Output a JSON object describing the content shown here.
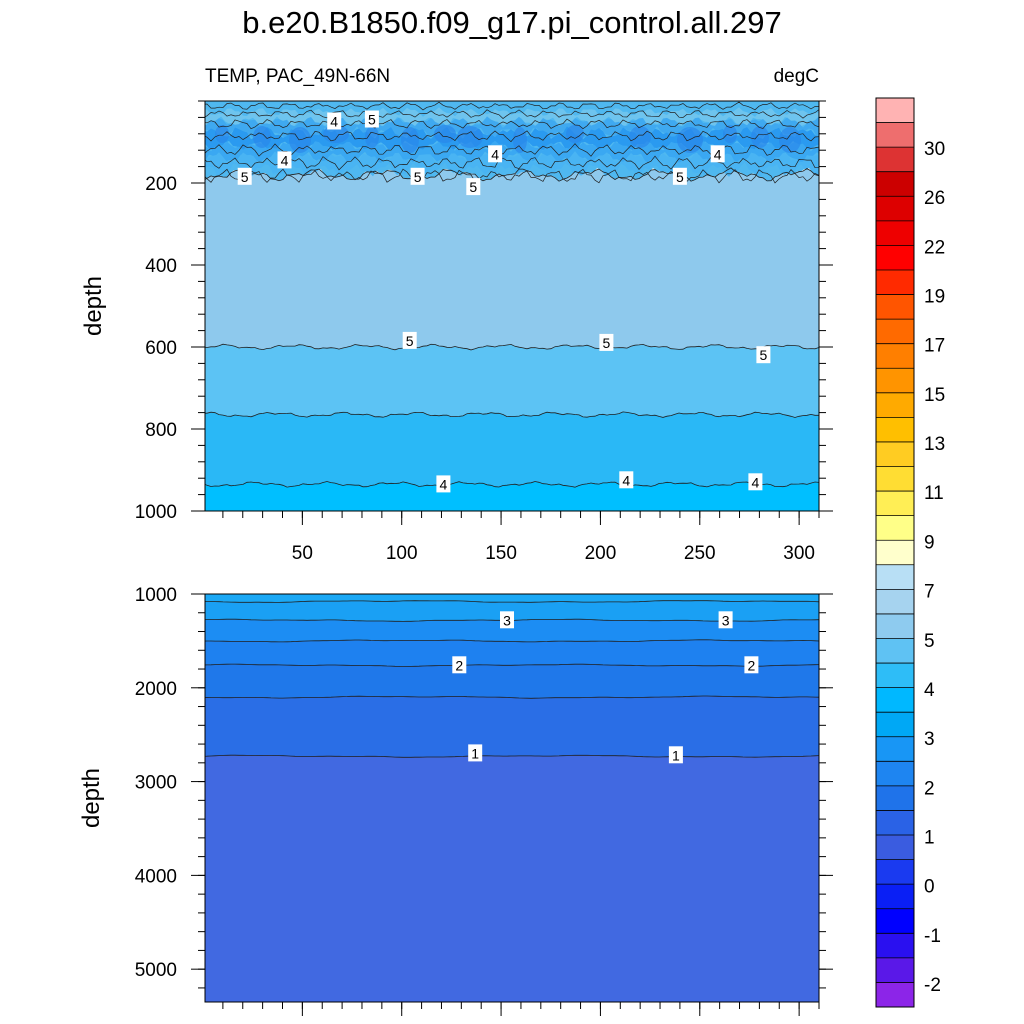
{
  "title": "b.e20.B1850.f09_g17.pi_control.all.297",
  "chart_data": [
    {
      "type": "contour",
      "panel": "upper",
      "variable_label": "TEMP, PAC_49N-66N",
      "units_label": "degC",
      "ylabel": "depth",
      "xlabel": "",
      "xlim": [
        1,
        310
      ],
      "ylim": [
        1000,
        0
      ],
      "x_ticks": [
        50,
        100,
        150,
        200,
        250,
        300
      ],
      "y_ticks": [
        200,
        400,
        600,
        800,
        1000
      ],
      "bands": [
        {
          "from_depth": 0,
          "to_depth": 180,
          "value_range": "3-5",
          "color": "#4fb8f0"
        },
        {
          "from_depth": 180,
          "to_depth": 600,
          "value_range": "5-6",
          "color": "#8ec9ed"
        },
        {
          "from_depth": 600,
          "to_depth": 765,
          "value_range": "4.5-5",
          "color": "#5cc3f4"
        },
        {
          "from_depth": 765,
          "to_depth": 935,
          "value_range": "4-4.5",
          "color": "#2ab8f6"
        },
        {
          "from_depth": 935,
          "to_depth": 1000,
          "value_range": "3.5-4",
          "color": "#00bfff"
        }
      ],
      "contour_labels": [
        {
          "text": "4",
          "x": 66,
          "depth": 50
        },
        {
          "text": "5",
          "x": 85,
          "depth": 45
        },
        {
          "text": "4",
          "x": 41,
          "depth": 145
        },
        {
          "text": "5",
          "x": 21,
          "depth": 185
        },
        {
          "text": "5",
          "x": 108,
          "depth": 185
        },
        {
          "text": "4",
          "x": 147,
          "depth": 130
        },
        {
          "text": "5",
          "x": 136,
          "depth": 210
        },
        {
          "text": "5",
          "x": 240,
          "depth": 185
        },
        {
          "text": "4",
          "x": 259,
          "depth": 130
        },
        {
          "text": "5",
          "x": 104,
          "depth": 585
        },
        {
          "text": "5",
          "x": 203,
          "depth": 590
        },
        {
          "text": "5",
          "x": 282,
          "depth": 620
        },
        {
          "text": "4",
          "x": 121,
          "depth": 935
        },
        {
          "text": "4",
          "x": 213,
          "depth": 925
        },
        {
          "text": "4",
          "x": 278,
          "depth": 930
        }
      ]
    },
    {
      "type": "contour",
      "panel": "lower",
      "ylabel": "depth",
      "xlabel": "",
      "xlim": [
        1,
        310
      ],
      "ylim": [
        5350,
        1000
      ],
      "y_ticks": [
        1000,
        2000,
        3000,
        4000,
        5000
      ],
      "bands": [
        {
          "from_depth": 1000,
          "to_depth": 1080,
          "value_range": "3.5-4",
          "color": "#1ba8f5"
        },
        {
          "from_depth": 1080,
          "to_depth": 1280,
          "value_range": "3-3.5",
          "color": "#1aa0f4"
        },
        {
          "from_depth": 1280,
          "to_depth": 1500,
          "value_range": "2.5-3",
          "color": "#1c8df3"
        },
        {
          "from_depth": 1500,
          "to_depth": 1760,
          "value_range": "2-2.5",
          "color": "#1e81f0"
        },
        {
          "from_depth": 1760,
          "to_depth": 2100,
          "value_range": "1.5-2",
          "color": "#1f78ea"
        },
        {
          "from_depth": 2100,
          "to_depth": 2730,
          "value_range": "1-1.5",
          "color": "#2a6ee6"
        },
        {
          "from_depth": 2730,
          "to_depth": 5350,
          "value_range": "0.5-1",
          "color": "#4169e1"
        }
      ],
      "contour_labels": [
        {
          "text": "3",
          "x": 153,
          "depth": 1280
        },
        {
          "text": "3",
          "x": 263,
          "depth": 1280
        },
        {
          "text": "2",
          "x": 129,
          "depth": 1760
        },
        {
          "text": "2",
          "x": 276,
          "depth": 1760
        },
        {
          "text": "1",
          "x": 137,
          "depth": 2700
        },
        {
          "text": "1",
          "x": 238,
          "depth": 2720
        }
      ]
    }
  ],
  "colorbar": {
    "labels": [
      "30",
      "26",
      "22",
      "19",
      "17",
      "15",
      "13",
      "11",
      "9",
      "7",
      "5",
      "4",
      "3",
      "2",
      "1",
      "0",
      "-1",
      "-2"
    ],
    "colors": [
      "#ffb3b3",
      "#ee6e6e",
      "#dd3333",
      "#cc0000",
      "#dd0000",
      "#ee0000",
      "#ff0000",
      "#ff2a00",
      "#ff5500",
      "#ff6a00",
      "#ff7f00",
      "#ff9400",
      "#ffaa00",
      "#ffbf00",
      "#ffcc22",
      "#ffdd33",
      "#ffee55",
      "#ffff88",
      "#ffffcc",
      "#b8dff5",
      "#a6d3ef",
      "#8ecbef",
      "#5fc2f3",
      "#2ebdf7",
      "#00b8ff",
      "#00a8f5",
      "#1896f5",
      "#1e85f1",
      "#1f73ea",
      "#2a62e6",
      "#3a5ce0",
      "#1a3af0",
      "#0a1ff5",
      "#0000ff",
      "#2a10f0",
      "#5a18e8",
      "#8c25e8"
    ]
  }
}
